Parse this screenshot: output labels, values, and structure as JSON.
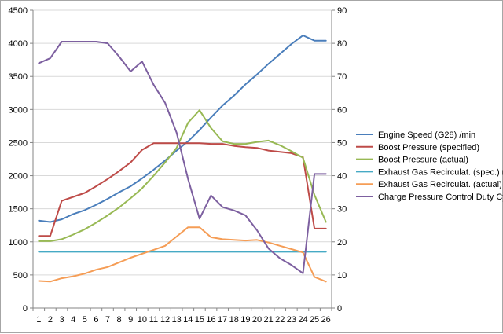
{
  "chart_data": {
    "type": "line",
    "title": "",
    "xlabel": "",
    "ylabel": "",
    "x": [
      1,
      2,
      3,
      4,
      5,
      6,
      7,
      8,
      9,
      10,
      11,
      12,
      13,
      14,
      15,
      16,
      17,
      18,
      19,
      20,
      21,
      22,
      23,
      24,
      25,
      26
    ],
    "x_tick_labels": [
      "1",
      "2",
      "3",
      "4",
      "5",
      "6",
      "7",
      "8",
      "9",
      "10",
      "11",
      "12",
      "13",
      "14",
      "15",
      "16",
      "17",
      "18",
      "19",
      "20",
      "21",
      "22",
      "23",
      "24",
      "25",
      "26"
    ],
    "ylim": [
      0,
      4500
    ],
    "y_ticks": [
      0,
      500,
      1000,
      1500,
      2000,
      2500,
      3000,
      3500,
      4000,
      4500
    ],
    "y_tick_labels": [
      "0",
      "500",
      "1000",
      "1500",
      "2000",
      "2500",
      "3000",
      "3500",
      "4000",
      "4500"
    ],
    "y2lim": [
      0,
      90
    ],
    "y2_ticks": [
      0,
      10,
      20,
      30,
      40,
      50,
      60,
      70,
      80,
      90
    ],
    "y2_tick_labels": [
      "0",
      "10",
      "20",
      "30",
      "40",
      "50",
      "60",
      "70",
      "80",
      "90"
    ],
    "grid": true,
    "legend_position": "right",
    "series": [
      {
        "name": "Engine Speed (G28)  /min",
        "color": "#4a7ebb",
        "axis": "left",
        "values": [
          1320,
          1300,
          1340,
          1420,
          1480,
          1560,
          1650,
          1750,
          1840,
          1960,
          2090,
          2230,
          2380,
          2520,
          2690,
          2880,
          3060,
          3210,
          3380,
          3530,
          3690,
          3840,
          3990,
          4120,
          4040,
          4040
        ]
      },
      {
        "name": "Boost Pressure (specified)",
        "color": "#be4b48",
        "axis": "left",
        "values": [
          1090,
          1090,
          1620,
          1680,
          1740,
          1840,
          1950,
          2070,
          2200,
          2390,
          2490,
          2490,
          2490,
          2490,
          2490,
          2480,
          2480,
          2450,
          2430,
          2420,
          2380,
          2360,
          2340,
          2280,
          1200,
          1200
        ]
      },
      {
        "name": "Boost Pressure (actual)",
        "color": "#98b954",
        "axis": "left",
        "values": [
          1010,
          1010,
          1040,
          1110,
          1190,
          1290,
          1400,
          1520,
          1660,
          1810,
          2000,
          2200,
          2420,
          2800,
          2990,
          2720,
          2520,
          2480,
          2480,
          2510,
          2530,
          2460,
          2370,
          2270,
          1710,
          1300
        ]
      },
      {
        "name": "Exhaust Gas Recirculat. (spec.)  mg/str",
        "color": "#46aac5",
        "axis": "left",
        "values": [
          850,
          850,
          850,
          850,
          850,
          850,
          850,
          850,
          850,
          850,
          850,
          850,
          850,
          850,
          850,
          850,
          850,
          850,
          850,
          850,
          850,
          850,
          850,
          850,
          850,
          850
        ]
      },
      {
        "name": "Exhaust Gas Recirculat. (actual)  mg/str",
        "color": "#f59d56",
        "axis": "left",
        "values": [
          410,
          400,
          450,
          480,
          520,
          580,
          620,
          690,
          760,
          820,
          880,
          940,
          1080,
          1220,
          1220,
          1070,
          1040,
          1030,
          1020,
          1030,
          990,
          940,
          890,
          840,
          470,
          400
        ]
      },
      {
        "name": "Charge Pressure Control Duty Cycle  %",
        "color": "#7d60a0",
        "axis": "right",
        "values": [
          74,
          75.5,
          80.5,
          80.5,
          80.5,
          80.5,
          80,
          76,
          71.5,
          74.5,
          67.5,
          62,
          53,
          39,
          27,
          34,
          30.5,
          29.5,
          28,
          23.5,
          18,
          15,
          13,
          10.5,
          40.5,
          40.5
        ]
      }
    ]
  }
}
